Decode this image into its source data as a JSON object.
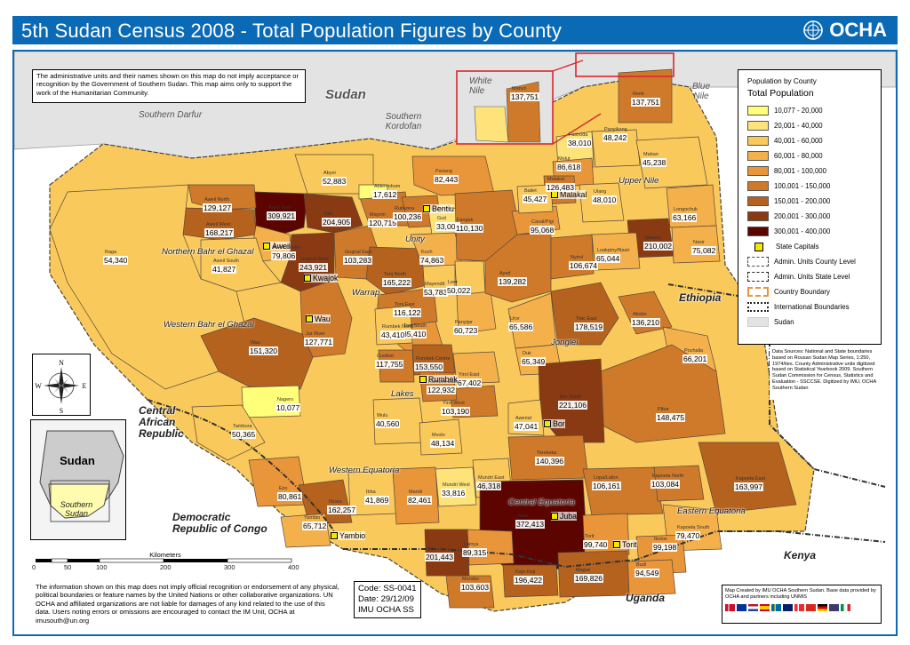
{
  "title": "5th Sudan Census 2008 - Total Population Figures by County",
  "logo_text": "OCHA",
  "disclaimer_top": "The administrative units and their names shown on this map do not imply acceptance or recognition by the Government of Southern Sudan. This map aims only to support the work of the Humanitarian Community.",
  "disclaimer_bottom": "The information shown on this map does not imply official recognition or endorsement of any physical, political boundaries or feature names by the United Nations or other collaborative organizations. UN OCHA and affiliated organizations are not liable for damages of any kind related to the use of this data. Users noting errors or omissions are encouraged to contact the IM Unit, OCHA at imusouth@un.org",
  "map_code": {
    "code": "Code: SS-0041",
    "date": "Date:  29/12/09",
    "org": "IMU  OCHA SS"
  },
  "legend": {
    "title1": "Population by County",
    "title2": "Total Population",
    "classes": [
      {
        "label": "10,077 - 20,000",
        "color": "#ffff7a"
      },
      {
        "label": "20,001 - 40,000",
        "color": "#fde37a"
      },
      {
        "label": "40,001 - 60,000",
        "color": "#f9c95b"
      },
      {
        "label": "60,001 - 80,000",
        "color": "#f4b04a"
      },
      {
        "label": "80,001 - 100,000",
        "color": "#e9963a"
      },
      {
        "label": "100,001 - 150,000",
        "color": "#cf7a2a"
      },
      {
        "label": "150,001 - 200,000",
        "color": "#b5621f"
      },
      {
        "label": "200,001 - 300,000",
        "color": "#8a3a12"
      },
      {
        "label": "300,001 - 400,000",
        "color": "#5c0500"
      }
    ],
    "symbols": [
      {
        "label": "State Capitals"
      },
      {
        "label": "Admin. Units County Level"
      },
      {
        "label": "Admin. Units State Level"
      },
      {
        "label": "Country Boundary"
      },
      {
        "label": "International Boundaries"
      },
      {
        "label": "Sudan"
      }
    ]
  },
  "source_text": "Data Sources: National and State boundaries based on Rousan Sudan Map Series, 1:250, 1974/ties. County Administrative units digitized based on Statistical Yearbook 2009. Southern Sudan Commission for Census, Statistics and Evaluation - SSCCSE. Digitized by IMU, OCHA Southern Sudan",
  "credits_text": "Map Created by IMU OCHA Southern Sudan. Base data provided by OCHA and partners including UNMIS",
  "scale": {
    "title": "Kilometers",
    "ticks": [
      "0",
      "50",
      "100",
      "200",
      "300",
      "400"
    ]
  },
  "regions": [
    {
      "name": "Sudan",
      "kind": "country"
    },
    {
      "name": "Southern Darfur",
      "kind": "region"
    },
    {
      "name": "Southern Kordofan",
      "kind": "region"
    },
    {
      "name": "White Nile",
      "kind": "region"
    },
    {
      "name": "Blue Nile",
      "kind": "region"
    },
    {
      "name": "Ethiopia",
      "kind": "country"
    },
    {
      "name": "Central African Republic",
      "kind": "country"
    },
    {
      "name": "Democratic Republic of Congo",
      "kind": "country"
    },
    {
      "name": "Kenya",
      "kind": "country"
    },
    {
      "name": "Uganda",
      "kind": "country"
    }
  ],
  "states": [
    "Northern Bahr el Ghazal",
    "Western Bahr el Ghazal",
    "Warrap",
    "Unity",
    "Upper Nile",
    "Jonglei",
    "Lakes",
    "Western Equatoria",
    "Central Equatoria",
    "Eastern Equatoria"
  ],
  "capitals": [
    "Aweil",
    "Kwajok",
    "Wau",
    "Bentiu",
    "Malakal",
    "Rumbek",
    "Bor",
    "Juba",
    "Torit",
    "Yambio"
  ],
  "counties": [
    {
      "name": "Aweil East",
      "value": "309,921",
      "class": 8
    },
    {
      "name": "Aweil North",
      "value": "129,127",
      "class": 5
    },
    {
      "name": "Aweil West",
      "value": "168,217",
      "class": 6
    },
    {
      "name": "Aweil Centre",
      "value": "79,806",
      "class": 3
    },
    {
      "name": "Aweil South",
      "value": "41,827",
      "class": 2
    },
    {
      "name": "Raga",
      "value": "54,340",
      "class": 2
    },
    {
      "name": "Abyei",
      "value": "52,883",
      "class": 2
    },
    {
      "name": "Twic",
      "value": "204,905",
      "class": 7
    },
    {
      "name": "Gogrial West",
      "value": "243,921",
      "class": 7
    },
    {
      "name": "Gogrial East",
      "value": "103,283",
      "class": 5
    },
    {
      "name": "Tonj North",
      "value": "165,222",
      "class": 6
    },
    {
      "name": "Tonj East",
      "value": "116,122",
      "class": 5
    },
    {
      "name": "Tonj South",
      "value": "85,410",
      "class": 4
    },
    {
      "name": "Jur River",
      "value": "127,771",
      "class": 5
    },
    {
      "name": "Wau",
      "value": "151,320",
      "class": 6
    },
    {
      "name": "Mayom",
      "value": "120,715",
      "class": 5
    },
    {
      "name": "Abiemnhom",
      "value": "17,612",
      "class": 0
    },
    {
      "name": "Rubkona",
      "value": "100,236",
      "class": 5
    },
    {
      "name": "Guit",
      "value": "33,004",
      "class": 1
    },
    {
      "name": "Koch",
      "value": "74,863",
      "class": 3
    },
    {
      "name": "Mayendit",
      "value": "53,783",
      "class": 2
    },
    {
      "name": "Leer",
      "value": "50,022",
      "class": 2
    },
    {
      "name": "Panyijar",
      "value": "60,723",
      "class": 3
    },
    {
      "name": "Pariang",
      "value": "82,443",
      "class": 4
    },
    {
      "name": "Fangak",
      "value": "110,130",
      "class": 5
    },
    {
      "name": "Canal/Pigi",
      "value": "95,068",
      "class": 4
    },
    {
      "name": "Ayod",
      "value": "139,282",
      "class": 5
    },
    {
      "name": "Nyirol",
      "value": "106,674",
      "class": 5
    },
    {
      "name": "Uror",
      "value": "65,586",
      "class": 3
    },
    {
      "name": "Akobo",
      "value": "136,210",
      "class": 5
    },
    {
      "name": "Pochalla",
      "value": "66,201",
      "class": 3
    },
    {
      "name": "Pibor",
      "value": "148,475",
      "class": 5
    },
    {
      "name": "Duk",
      "value": "65,349",
      "class": 3
    },
    {
      "name": "Twic East",
      "value": "178,519",
      "class": 6
    },
    {
      "name": "Bor South",
      "value": "221,106",
      "class": 7
    },
    {
      "name": "Awerial",
      "value": "47,041",
      "class": 2
    },
    {
      "name": "Yirol East",
      "value": "67,402",
      "class": 3
    },
    {
      "name": "Yirol West",
      "value": "103,190",
      "class": 5
    },
    {
      "name": "Rumbek North",
      "value": "43,410",
      "class": 2
    },
    {
      "name": "Rumbek Centre",
      "value": "153,550",
      "class": 6
    },
    {
      "name": "Rumbek East",
      "value": "122,932",
      "class": 5
    },
    {
      "name": "Cueibet",
      "value": "117,755",
      "class": 5
    },
    {
      "name": "Wulu",
      "value": "40,560",
      "class": 2
    },
    {
      "name": "Nagero",
      "value": "10,077",
      "class": 0
    },
    {
      "name": "Tambura",
      "value": "50,365",
      "class": 2
    },
    {
      "name": "Ezo",
      "value": "80,861",
      "class": 4
    },
    {
      "name": "Nzara",
      "value": "162,257",
      "class": 6
    },
    {
      "name": "Yambio",
      "value": "65,712",
      "class": 3
    },
    {
      "name": "Ibba",
      "value": "41,869",
      "class": 2
    },
    {
      "name": "Maridi",
      "value": "82,461",
      "class": 4
    },
    {
      "name": "Mvolo",
      "value": "48,134",
      "class": 2
    },
    {
      "name": "Mundri West",
      "value": "33,816",
      "class": 1
    },
    {
      "name": "Mundri East",
      "value": "46,318",
      "class": 2
    },
    {
      "name": "Terekeka",
      "value": "140,396",
      "class": 5
    },
    {
      "name": "Juba",
      "value": "372,413",
      "class": 8
    },
    {
      "name": "Lainya",
      "value": "89,315",
      "class": 4
    },
    {
      "name": "Yei",
      "value": "201,443",
      "class": 7
    },
    {
      "name": "Morobo",
      "value": "103,603",
      "class": 5
    },
    {
      "name": "Kajo-Keji",
      "value": "196,422",
      "class": 6
    },
    {
      "name": "Lopa/Lafon",
      "value": "106,161",
      "class": 5
    },
    {
      "name": "Kapoeta North",
      "value": "103,084",
      "class": 5
    },
    {
      "name": "Kapoeta East",
      "value": "163,997",
      "class": 6
    },
    {
      "name": "Kapoeta South",
      "value": "79,470",
      "class": 3
    },
    {
      "name": "Torit",
      "value": "99,740",
      "class": 4
    },
    {
      "name": "Ikotos",
      "value": "99,198",
      "class": 4
    },
    {
      "name": "Budi",
      "value": "94,549",
      "class": 4
    },
    {
      "name": "Magwi",
      "value": "169,826",
      "class": 6
    },
    {
      "name": "Manyo",
      "value": "137,751",
      "class": 5
    },
    {
      "name": "Renk",
      "value": "137,751",
      "class": 5
    },
    {
      "name": "Fashoda",
      "value": "38,010",
      "class": 1
    },
    {
      "name": "Panyikang",
      "value": "48,242",
      "class": 2
    },
    {
      "name": "Melut",
      "value": "86,618",
      "class": 4
    },
    {
      "name": "Malakal",
      "value": "126,483",
      "class": 5
    },
    {
      "name": "Baliet",
      "value": "45,427",
      "class": 2
    },
    {
      "name": "Ulang",
      "value": "48,010",
      "class": 2
    },
    {
      "name": "Maban",
      "value": "45,238",
      "class": 2
    },
    {
      "name": "Longochuk",
      "value": "63,166",
      "class": 3
    },
    {
      "name": "Maiwut",
      "value": "210,002",
      "class": 7
    },
    {
      "name": "Nasir",
      "value": "75,082",
      "class": 3
    },
    {
      "name": "Luakpiny/Nasir",
      "value": "65,044",
      "class": 3
    }
  ]
}
